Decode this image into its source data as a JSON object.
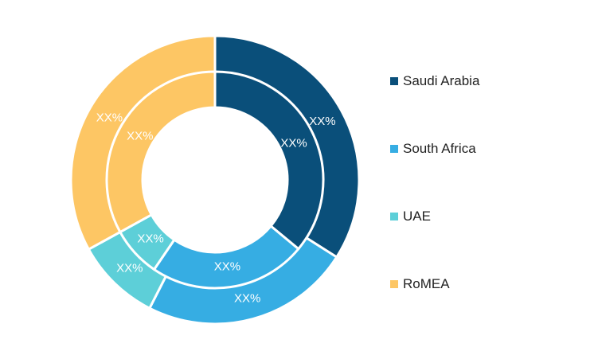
{
  "chart_data": {
    "type": "pie",
    "subtype": "nested-donut",
    "categories": [
      "Saudi Arabia",
      "South Africa",
      "UAE",
      "RoMEA"
    ],
    "colors": [
      "#0a4f7a",
      "#36ade3",
      "#5dcfd8",
      "#fdc664"
    ],
    "series": [
      {
        "ring": "outer",
        "values": [
          34,
          23.5,
          9.5,
          33
        ],
        "labels": [
          "XX%",
          "XX%",
          "XX%",
          "XX%"
        ]
      },
      {
        "ring": "inner",
        "values": [
          36,
          23.5,
          7.5,
          33
        ],
        "labels": [
          "XX%",
          "XX%",
          "XX%",
          "XX%"
        ]
      }
    ],
    "legend": {
      "position": "right"
    }
  }
}
